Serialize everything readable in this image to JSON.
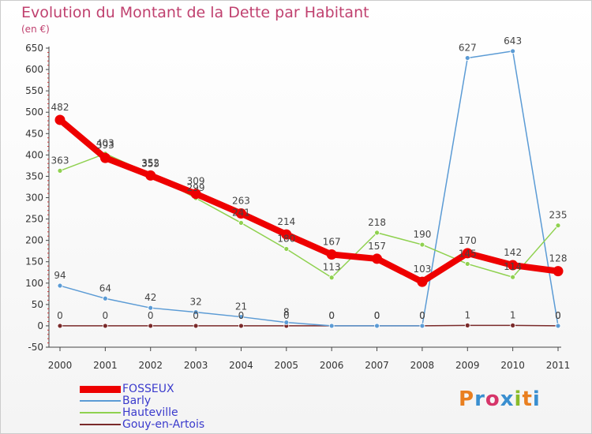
{
  "header": {
    "title": "Evolution du Montant de la Dette par Habitant",
    "unit": "(en €)"
  },
  "logo": {
    "text": "Proxiti",
    "letter_colors": [
      "#e97f20",
      "#3a8fd0",
      "#d6356a",
      "#3a8fd0",
      "#8abb2a",
      "#e97f20",
      "#3a8fd0"
    ]
  },
  "chart_data": {
    "type": "line",
    "title": "Evolution du Montant de la Dette par Habitant",
    "ylabel": "(en €)",
    "xlabel": "",
    "x": [
      "2000",
      "2001",
      "2002",
      "2003",
      "2004",
      "2005",
      "2006",
      "2007",
      "2008",
      "2009",
      "2010",
      "2011"
    ],
    "ylim": [
      -50,
      650
    ],
    "yticks": [
      -50,
      0,
      50,
      100,
      150,
      200,
      250,
      300,
      350,
      400,
      450,
      500,
      550,
      600,
      650
    ],
    "grid": false,
    "legend_position": "bottom-left",
    "series": [
      {
        "name": "FOSSEUX",
        "color": "#ee0000",
        "values": [
          482,
          393,
          352,
          309,
          263,
          214,
          167,
          157,
          103,
          170,
          142,
          128
        ]
      },
      {
        "name": "Barly",
        "color": "#5b9bd5",
        "values": [
          94,
          64,
          42,
          32,
          21,
          8,
          0,
          0,
          0,
          627,
          643,
          0
        ]
      },
      {
        "name": "Hauteville",
        "color": "#8fd14f",
        "values": [
          363,
          403,
          355,
          299,
          241,
          180,
          113,
          218,
          190,
          145,
          114,
          235
        ]
      },
      {
        "name": "Gouy-en-Artois",
        "color": "#7a2a2a",
        "values": [
          0,
          0,
          0,
          0,
          0,
          0,
          0,
          0,
          0,
          1,
          1,
          0
        ]
      }
    ]
  }
}
